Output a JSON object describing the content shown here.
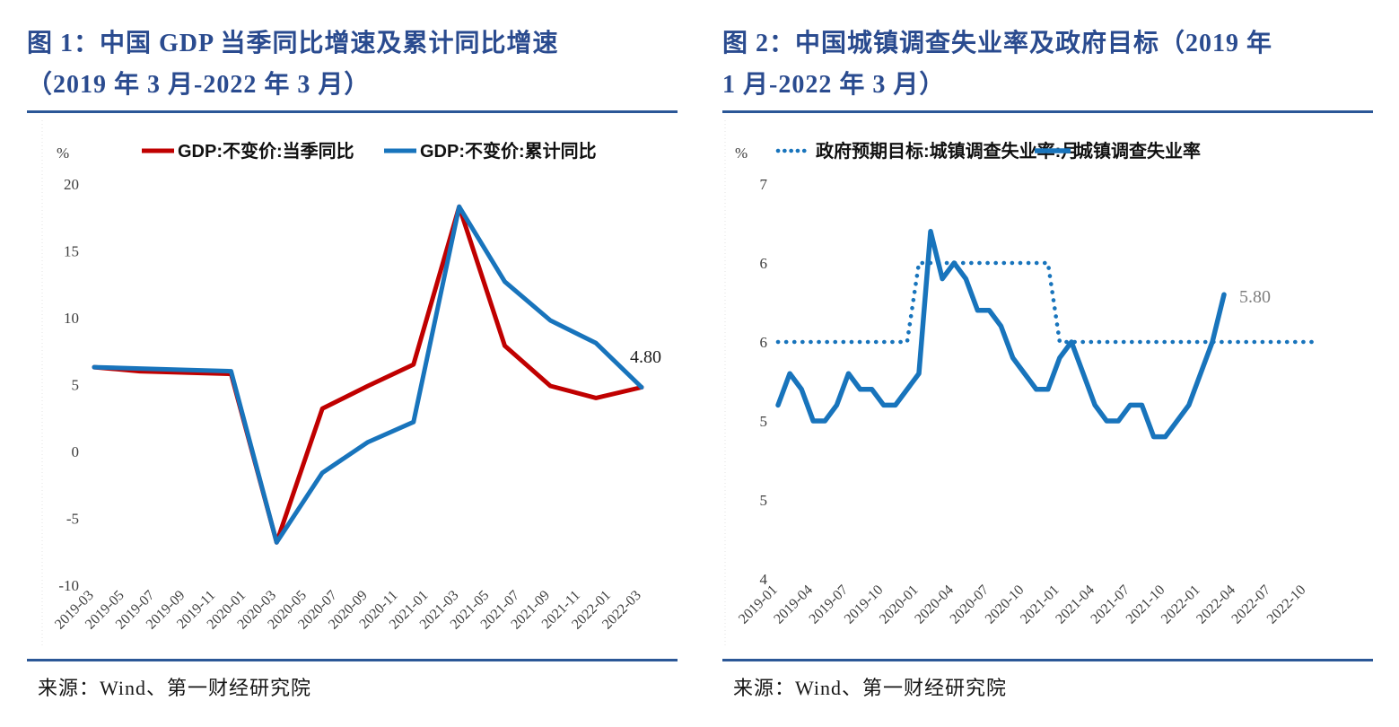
{
  "figures": [
    {
      "title_line1": "图 1：中国 GDP 当季同比增速及累计同比增速",
      "title_line2": "（2019 年 3 月-2022 年 3 月）",
      "source": "来源：Wind、第一财经研究院"
    },
    {
      "title_line1": "图 2：中国城镇调查失业率及政府目标（2019 年",
      "title_line2": "1 月-2022 年 3 月）",
      "source": "来源：Wind、第一财经研究院"
    }
  ],
  "colors": {
    "title_navy": "#2a4b8f",
    "rule_navy": "#2b5797",
    "line_red": "#c00000",
    "line_blue": "#1874bc",
    "tick_text": "#3d3d3d",
    "annotation_gray": "#7f7f7f",
    "annotation_black": "#1a1a1a"
  },
  "chart_data": [
    {
      "type": "line",
      "title": "中国GDP当季同比增速及累计同比增速（2019年3月-2022年3月）",
      "unit": "%",
      "x_range": [
        "2019-03",
        "2022-03"
      ],
      "x_tick_months": [
        0,
        2,
        4,
        6,
        8,
        10,
        12,
        14,
        16,
        18,
        20,
        22,
        24,
        26,
        28,
        30,
        32,
        34,
        36
      ],
      "x_tick_labels": [
        "2019-03",
        "2019-05",
        "2019-07",
        "2019-09",
        "2019-11",
        "2020-01",
        "2020-03",
        "2020-05",
        "2020-07",
        "2020-09",
        "2020-11",
        "2021-01",
        "2021-03",
        "2021-05",
        "2021-07",
        "2021-09",
        "2021-11",
        "2022-01",
        "2022-03"
      ],
      "y_ticks": [
        {
          "value": 20,
          "label": "20"
        },
        {
          "value": 15,
          "label": "15"
        },
        {
          "value": 10,
          "label": "10"
        },
        {
          "value": 5,
          "label": "5"
        },
        {
          "value": 0,
          "label": "0"
        },
        {
          "value": -5,
          "label": "-5"
        },
        {
          "value": -10,
          "label": "-10"
        }
      ],
      "ylim": [
        -10,
        20
      ],
      "grid": false,
      "legend_position": "top",
      "series": [
        {
          "name": "GDP:不变价:当季同比",
          "data_name": "gdp-quarterly-yoy-line",
          "color": "#c00000",
          "marker": "solid",
          "m_start": 0,
          "m_step": 3,
          "x_points": [
            "2019-03",
            "2019-06",
            "2019-09",
            "2019-12",
            "2020-03",
            "2020-06",
            "2020-09",
            "2020-12",
            "2021-03",
            "2021-06",
            "2021-09",
            "2021-12",
            "2022-03"
          ],
          "values": [
            6.3,
            6.0,
            5.9,
            5.8,
            -6.8,
            3.2,
            4.9,
            6.5,
            18.3,
            7.9,
            4.9,
            4.0,
            4.8
          ]
        },
        {
          "name": "GDP:不变价:累计同比",
          "data_name": "gdp-cumulative-yoy-line",
          "color": "#1874bc",
          "marker": "solid",
          "m_start": 0,
          "m_step": 3,
          "x_points": [
            "2019-03",
            "2019-06",
            "2019-09",
            "2019-12",
            "2020-03",
            "2020-06",
            "2020-09",
            "2020-12",
            "2021-03",
            "2021-06",
            "2021-09",
            "2021-12",
            "2022-03"
          ],
          "values": [
            6.3,
            6.2,
            6.1,
            6.0,
            -6.8,
            -1.6,
            0.7,
            2.2,
            18.3,
            12.7,
            9.8,
            8.1,
            4.8
          ]
        }
      ],
      "annotation": {
        "text": "4.80",
        "color": "#1a1a1a"
      }
    },
    {
      "type": "line",
      "title": "中国城镇调查失业率及政府目标（2019年1月-2022年3月）",
      "unit": "%",
      "x_range": [
        "2019-01",
        "2022-12"
      ],
      "x_tick_months": [
        0,
        3,
        6,
        9,
        12,
        15,
        18,
        21,
        24,
        27,
        30,
        33,
        36,
        39,
        42,
        45
      ],
      "x_tick_labels": [
        "2019-01",
        "2019-04",
        "2019-07",
        "2019-10",
        "2020-01",
        "2020-04",
        "2020-07",
        "2020-10",
        "2021-01",
        "2021-04",
        "2021-07",
        "2021-10",
        "2022-01",
        "2022-04",
        "2022-07",
        "2022-10"
      ],
      "y_ticks": [
        {
          "value": 6.5,
          "label": "7"
        },
        {
          "value": 6.0,
          "label": "6"
        },
        {
          "value": 5.5,
          "label": "6"
        },
        {
          "value": 5.0,
          "label": "5"
        },
        {
          "value": 4.5,
          "label": "5"
        },
        {
          "value": 4.0,
          "label": "4"
        }
      ],
      "ylim": [
        4.0,
        6.5
      ],
      "grid": false,
      "legend_position": "top",
      "series": [
        {
          "name": "政府预期目标:城镇调查失业率:月",
          "data_name": "government-target-dotted-line",
          "color": "#1874bc",
          "marker": "dotted",
          "m_start": 0,
          "m_step": 1,
          "values": [
            5.5,
            5.5,
            5.5,
            5.5,
            5.5,
            5.5,
            5.5,
            5.5,
            5.5,
            5.5,
            5.5,
            5.5,
            6.0,
            6.0,
            6.0,
            6.0,
            6.0,
            6.0,
            6.0,
            6.0,
            6.0,
            6.0,
            6.0,
            6.0,
            5.5,
            5.5,
            5.5,
            5.5,
            5.5,
            5.5,
            5.5,
            5.5,
            5.5,
            5.5,
            5.5,
            5.5,
            5.5,
            5.5,
            5.5,
            5.5,
            5.5,
            5.5,
            5.5,
            5.5,
            5.5,
            5.5,
            5.5
          ]
        },
        {
          "name": "城镇调查失业率",
          "data_name": "surveyed-unemployment-line",
          "color": "#1874bc",
          "marker": "solid",
          "m_start": 0,
          "m_step": 1,
          "values": [
            5.1,
            5.3,
            5.2,
            5.0,
            5.0,
            5.1,
            5.3,
            5.2,
            5.2,
            5.1,
            5.1,
            5.2,
            5.3,
            6.2,
            5.9,
            6.0,
            5.9,
            5.7,
            5.7,
            5.6,
            5.4,
            5.3,
            5.2,
            5.2,
            5.4,
            5.5,
            5.3,
            5.1,
            5.0,
            5.0,
            5.1,
            5.1,
            4.9,
            4.9,
            5.0,
            5.1,
            5.3,
            5.5,
            5.8
          ]
        }
      ],
      "annotation": {
        "text": "5.80",
        "color": "#7f7f7f"
      }
    }
  ]
}
